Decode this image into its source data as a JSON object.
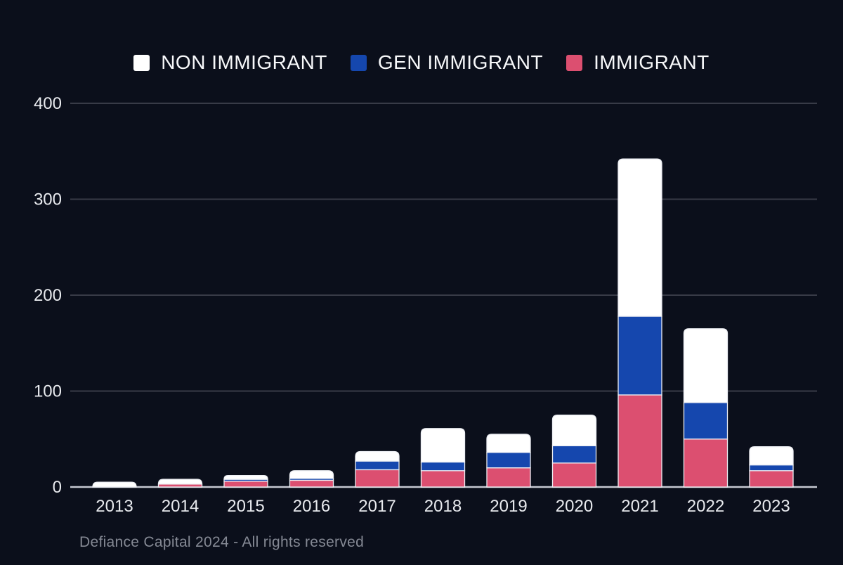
{
  "chart_data": {
    "type": "bar",
    "stacked": true,
    "title": "",
    "xlabel": "",
    "ylabel": "",
    "categories": [
      "2013",
      "2014",
      "2015",
      "2016",
      "2017",
      "2018",
      "2019",
      "2020",
      "2021",
      "2022",
      "2023"
    ],
    "series": [
      {
        "name": "NON IMMIGRANT",
        "color": "#ffffff",
        "values": [
          5,
          5,
          4,
          8,
          10,
          35,
          19,
          32,
          164,
          77,
          19
        ]
      },
      {
        "name": "GEN IMMIGRANT",
        "color": "#1547ae",
        "values": [
          0,
          0,
          2,
          2,
          9,
          9,
          16,
          18,
          82,
          38,
          6
        ]
      },
      {
        "name": "IMMIGRANT",
        "color": "#dc4f70",
        "values": [
          0,
          3,
          6,
          7,
          18,
          17,
          20,
          25,
          96,
          50,
          17
        ]
      }
    ],
    "stack_order_bottom_to_top": [
      "IMMIGRANT",
      "GEN IMMIGRANT",
      "NON IMMIGRANT"
    ],
    "totals": [
      5,
      8,
      12,
      17,
      37,
      61,
      55,
      75,
      342,
      165,
      42
    ],
    "yticks": [
      0,
      100,
      200,
      300,
      400
    ],
    "ylim": [
      0,
      400
    ],
    "grid": true,
    "legend_position": "top"
  },
  "footer": {
    "text": "Defiance Capital 2024 - All rights reserved"
  },
  "colors": {
    "background": "#0b0f1b",
    "gridline": "#383b47",
    "axis_line": "#c6c9d2",
    "tick_label": "#e8eaee",
    "segment_stroke": "#edeff4",
    "legend_text": "#f7f8fa",
    "footer_text": "#858994"
  }
}
